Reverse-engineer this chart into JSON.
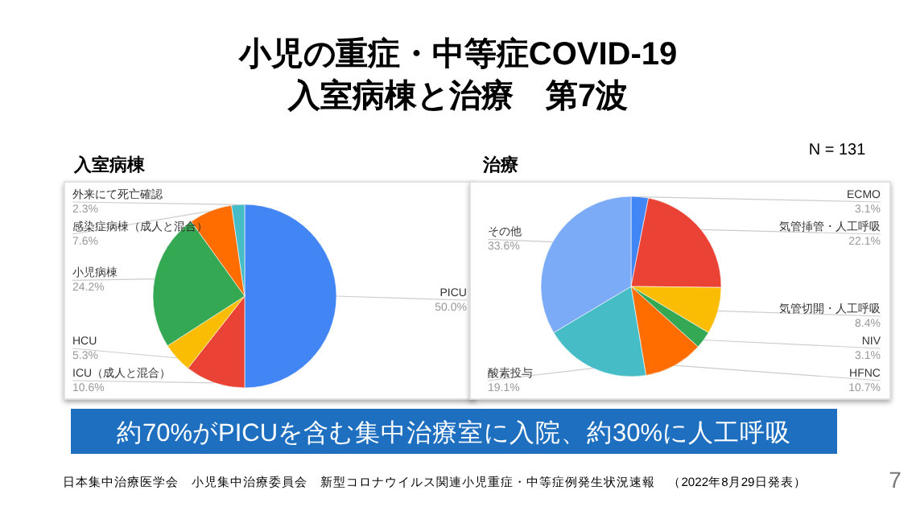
{
  "chart_data": [
    {
      "type": "pie",
      "title": "入室病棟",
      "categories": [
        "PICU",
        "ICU（成人と混合）",
        "HCU",
        "小児病棟",
        "感染症病棟（成人と混合）",
        "外来にて死亡確認"
      ],
      "values": [
        50.0,
        10.6,
        5.3,
        24.2,
        7.6,
        2.3
      ],
      "colors": [
        "#4285f4",
        "#ea4335",
        "#fbbc04",
        "#34a853",
        "#ff6d01",
        "#46bdc6"
      ],
      "value_labels": [
        "50.0%",
        "10.6%",
        "5.3%",
        "24.2%",
        "7.6%",
        "2.3%"
      ],
      "annotations": [
        "小児の重症・中等症COVID-19\n入室病棟と治療　第7波"
      ]
    },
    {
      "type": "pie",
      "title": "治療",
      "categories": [
        "ECMO",
        "気管挿管・人工呼吸",
        "気管切開・人工呼吸",
        "NIV",
        "HFNC",
        "酸素投与",
        "その他"
      ],
      "values": [
        3.1,
        22.1,
        8.4,
        3.1,
        10.7,
        19.1,
        33.6
      ],
      "colors": [
        "#4285f4",
        "#ea4335",
        "#fbbc04",
        "#34a853",
        "#ff6d01",
        "#46bdc6",
        "#7baaf7"
      ],
      "value_labels": [
        "3.1%",
        "22.1%",
        "8.4%",
        "3.1%",
        "10.7%",
        "19.1%",
        "33.6%"
      ],
      "annotations": [
        "N = 131",
        "約70%がPICUを含む集中治療室に入院、約30%に人工呼吸",
        "日本集中治療医学会　小児集中治療委員会　新型コロナウイルス関連小児重症・中等症例発生状況速報　（2022年8月29日発表）",
        "7"
      ]
    }
  ]
}
